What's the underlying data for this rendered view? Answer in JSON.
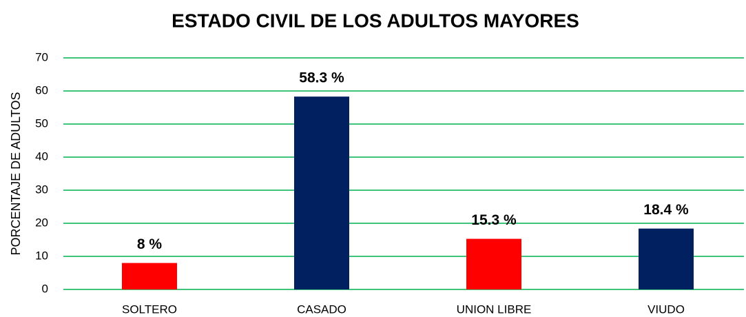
{
  "chart_data": {
    "type": "bar",
    "title": "ESTADO CIVIL DE LOS ADULTOS MAYORES",
    "y_label": "PORCENTAJE DE ADULTOS",
    "categories": [
      "SOLTERO",
      "CASADO",
      "UNION LIBRE",
      "VIUDO"
    ],
    "values": [
      8,
      58.3,
      15.3,
      18.4
    ],
    "value_labels": [
      "8 %",
      "58.3 %",
      "15.3 %",
      "18.4 %"
    ],
    "colors": [
      "#ff0000",
      "#002060",
      "#ff0000",
      "#002060"
    ],
    "ylim": [
      0,
      70
    ],
    "yticks": [
      0,
      10,
      20,
      30,
      40,
      50,
      60,
      70
    ],
    "grid": true,
    "grid_color": "#00b050"
  }
}
